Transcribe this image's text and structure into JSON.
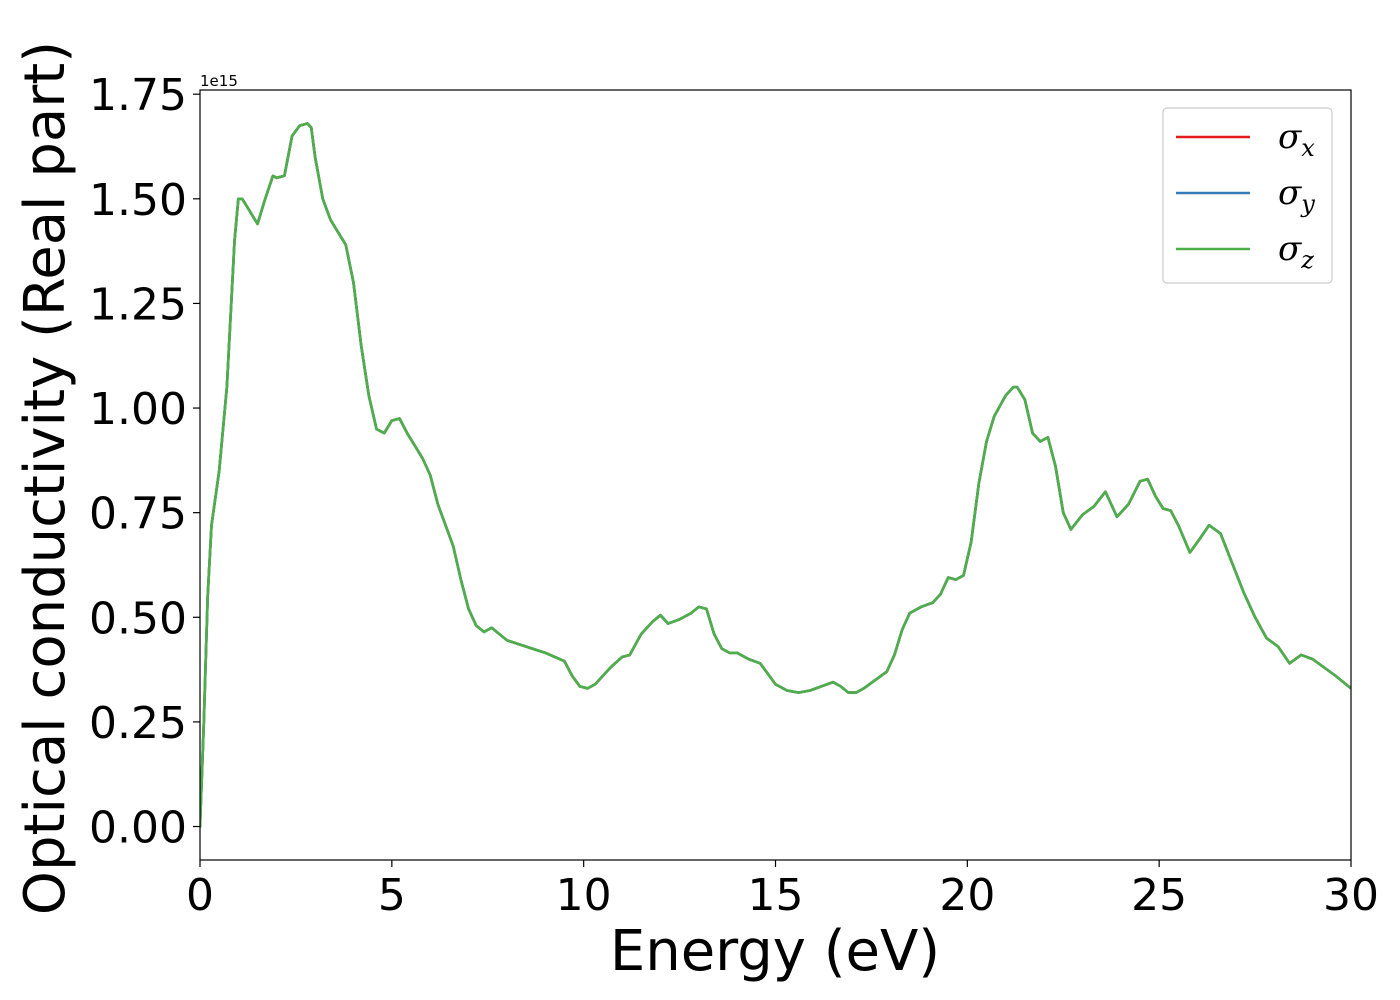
{
  "chart_data": {
    "type": "line",
    "title": "",
    "xlabel": "Energy (eV)",
    "ylabel": "Optical conductivity (Real part)",
    "y_offset_label": "1e15",
    "xlim": [
      0,
      30
    ],
    "ylim": [
      -0.08,
      1.76
    ],
    "x_ticks": [
      0,
      5,
      10,
      15,
      20,
      25,
      30
    ],
    "x_tick_labels": [
      "0",
      "5",
      "10",
      "15",
      "20",
      "25",
      "30"
    ],
    "y_ticks": [
      0.0,
      0.25,
      0.5,
      0.75,
      1.0,
      1.25,
      1.5,
      1.75
    ],
    "y_tick_labels": [
      "0.00",
      "0.25",
      "0.50",
      "0.75",
      "1.00",
      "1.25",
      "1.50",
      "1.75"
    ],
    "grid": false,
    "legend_position": "top-right",
    "x": [
      0,
      0.1,
      0.2,
      0.3,
      0.5,
      0.7,
      0.9,
      1.0,
      1.1,
      1.3,
      1.5,
      1.7,
      1.9,
      2.0,
      2.2,
      2.4,
      2.6,
      2.8,
      2.9,
      3.0,
      3.2,
      3.4,
      3.6,
      3.8,
      4.0,
      4.2,
      4.4,
      4.6,
      4.8,
      5.0,
      5.2,
      5.4,
      5.6,
      5.8,
      6.0,
      6.2,
      6.4,
      6.6,
      6.8,
      7.0,
      7.2,
      7.4,
      7.6,
      7.8,
      8.0,
      8.5,
      9.0,
      9.5,
      9.7,
      9.9,
      10.1,
      10.3,
      10.5,
      10.7,
      11.0,
      11.2,
      11.5,
      11.8,
      12.0,
      12.2,
      12.5,
      12.8,
      13.0,
      13.2,
      13.4,
      13.6,
      13.8,
      14.0,
      14.3,
      14.6,
      14.8,
      15.0,
      15.3,
      15.6,
      15.9,
      16.2,
      16.5,
      16.7,
      16.9,
      17.1,
      17.3,
      17.6,
      17.9,
      18.1,
      18.3,
      18.5,
      18.8,
      19.1,
      19.3,
      19.5,
      19.7,
      19.9,
      20.1,
      20.3,
      20.5,
      20.7,
      21.0,
      21.2,
      21.3,
      21.5,
      21.7,
      21.9,
      22.1,
      22.3,
      22.5,
      22.7,
      23.0,
      23.3,
      23.6,
      23.9,
      24.2,
      24.5,
      24.7,
      24.9,
      25.1,
      25.3,
      25.5,
      25.8,
      26.0,
      26.3,
      26.6,
      26.9,
      27.2,
      27.5,
      27.8,
      28.1,
      28.4,
      28.7,
      29.0,
      29.3,
      29.6,
      30.0
    ],
    "series": [
      {
        "name": "σx",
        "color": "#e41a1c",
        "values": [
          0.0,
          0.25,
          0.55,
          0.72,
          0.85,
          1.05,
          1.4,
          1.5,
          1.5,
          1.47,
          1.44,
          1.5,
          1.555,
          1.55,
          1.555,
          1.65,
          1.675,
          1.68,
          1.67,
          1.6,
          1.5,
          1.45,
          1.42,
          1.39,
          1.3,
          1.15,
          1.03,
          0.95,
          0.94,
          0.97,
          0.975,
          0.94,
          0.91,
          0.88,
          0.84,
          0.77,
          0.72,
          0.67,
          0.59,
          0.52,
          0.48,
          0.465,
          0.475,
          0.46,
          0.445,
          0.43,
          0.415,
          0.395,
          0.36,
          0.335,
          0.33,
          0.34,
          0.36,
          0.38,
          0.405,
          0.41,
          0.46,
          0.49,
          0.505,
          0.485,
          0.495,
          0.51,
          0.525,
          0.52,
          0.46,
          0.425,
          0.415,
          0.415,
          0.4,
          0.39,
          0.365,
          0.34,
          0.325,
          0.32,
          0.325,
          0.335,
          0.345,
          0.335,
          0.32,
          0.32,
          0.33,
          0.35,
          0.37,
          0.41,
          0.47,
          0.51,
          0.525,
          0.535,
          0.555,
          0.595,
          0.59,
          0.6,
          0.68,
          0.82,
          0.92,
          0.98,
          1.03,
          1.05,
          1.05,
          1.02,
          0.94,
          0.92,
          0.93,
          0.86,
          0.75,
          0.71,
          0.745,
          0.765,
          0.8,
          0.74,
          0.77,
          0.825,
          0.83,
          0.79,
          0.76,
          0.755,
          0.72,
          0.655,
          0.68,
          0.72,
          0.7,
          0.63,
          0.56,
          0.5,
          0.45,
          0.43,
          0.39,
          0.41,
          0.4,
          0.38,
          0.36,
          0.33
        ]
      },
      {
        "name": "σy",
        "color": "#377eb8",
        "values": [
          0.0,
          0.25,
          0.55,
          0.72,
          0.85,
          1.05,
          1.4,
          1.5,
          1.5,
          1.47,
          1.44,
          1.5,
          1.555,
          1.55,
          1.555,
          1.65,
          1.675,
          1.68,
          1.67,
          1.6,
          1.5,
          1.45,
          1.42,
          1.39,
          1.3,
          1.15,
          1.03,
          0.95,
          0.94,
          0.97,
          0.975,
          0.94,
          0.91,
          0.88,
          0.84,
          0.77,
          0.72,
          0.67,
          0.59,
          0.52,
          0.48,
          0.465,
          0.475,
          0.46,
          0.445,
          0.43,
          0.415,
          0.395,
          0.36,
          0.335,
          0.33,
          0.34,
          0.36,
          0.38,
          0.405,
          0.41,
          0.46,
          0.49,
          0.505,
          0.485,
          0.495,
          0.51,
          0.525,
          0.52,
          0.46,
          0.425,
          0.415,
          0.415,
          0.4,
          0.39,
          0.365,
          0.34,
          0.325,
          0.32,
          0.325,
          0.335,
          0.345,
          0.335,
          0.32,
          0.32,
          0.33,
          0.35,
          0.37,
          0.41,
          0.47,
          0.51,
          0.525,
          0.535,
          0.555,
          0.595,
          0.59,
          0.6,
          0.68,
          0.82,
          0.92,
          0.98,
          1.03,
          1.05,
          1.05,
          1.02,
          0.94,
          0.92,
          0.93,
          0.86,
          0.75,
          0.71,
          0.745,
          0.765,
          0.8,
          0.74,
          0.77,
          0.825,
          0.83,
          0.79,
          0.76,
          0.755,
          0.72,
          0.655,
          0.68,
          0.72,
          0.7,
          0.63,
          0.56,
          0.5,
          0.45,
          0.43,
          0.39,
          0.41,
          0.4,
          0.38,
          0.36,
          0.33
        ]
      },
      {
        "name": "σz",
        "color": "#4daf4a",
        "values": [
          0.0,
          0.25,
          0.55,
          0.72,
          0.85,
          1.05,
          1.4,
          1.5,
          1.5,
          1.47,
          1.44,
          1.5,
          1.555,
          1.55,
          1.555,
          1.65,
          1.675,
          1.68,
          1.67,
          1.6,
          1.5,
          1.45,
          1.42,
          1.39,
          1.3,
          1.15,
          1.03,
          0.95,
          0.94,
          0.97,
          0.975,
          0.94,
          0.91,
          0.88,
          0.84,
          0.77,
          0.72,
          0.67,
          0.59,
          0.52,
          0.48,
          0.465,
          0.475,
          0.46,
          0.445,
          0.43,
          0.415,
          0.395,
          0.36,
          0.335,
          0.33,
          0.34,
          0.36,
          0.38,
          0.405,
          0.41,
          0.46,
          0.49,
          0.505,
          0.485,
          0.495,
          0.51,
          0.525,
          0.52,
          0.46,
          0.425,
          0.415,
          0.415,
          0.4,
          0.39,
          0.365,
          0.34,
          0.325,
          0.32,
          0.325,
          0.335,
          0.345,
          0.335,
          0.32,
          0.32,
          0.33,
          0.35,
          0.37,
          0.41,
          0.47,
          0.51,
          0.525,
          0.535,
          0.555,
          0.595,
          0.59,
          0.6,
          0.68,
          0.82,
          0.92,
          0.98,
          1.03,
          1.05,
          1.05,
          1.02,
          0.94,
          0.92,
          0.93,
          0.86,
          0.75,
          0.71,
          0.745,
          0.765,
          0.8,
          0.74,
          0.77,
          0.825,
          0.83,
          0.79,
          0.76,
          0.755,
          0.72,
          0.655,
          0.68,
          0.72,
          0.7,
          0.63,
          0.56,
          0.5,
          0.45,
          0.43,
          0.39,
          0.41,
          0.4,
          0.38,
          0.36,
          0.33
        ]
      }
    ],
    "legend": [
      {
        "base": "σ",
        "sub": "x"
      },
      {
        "base": "σ",
        "sub": "y"
      },
      {
        "base": "σ",
        "sub": "z"
      }
    ]
  }
}
